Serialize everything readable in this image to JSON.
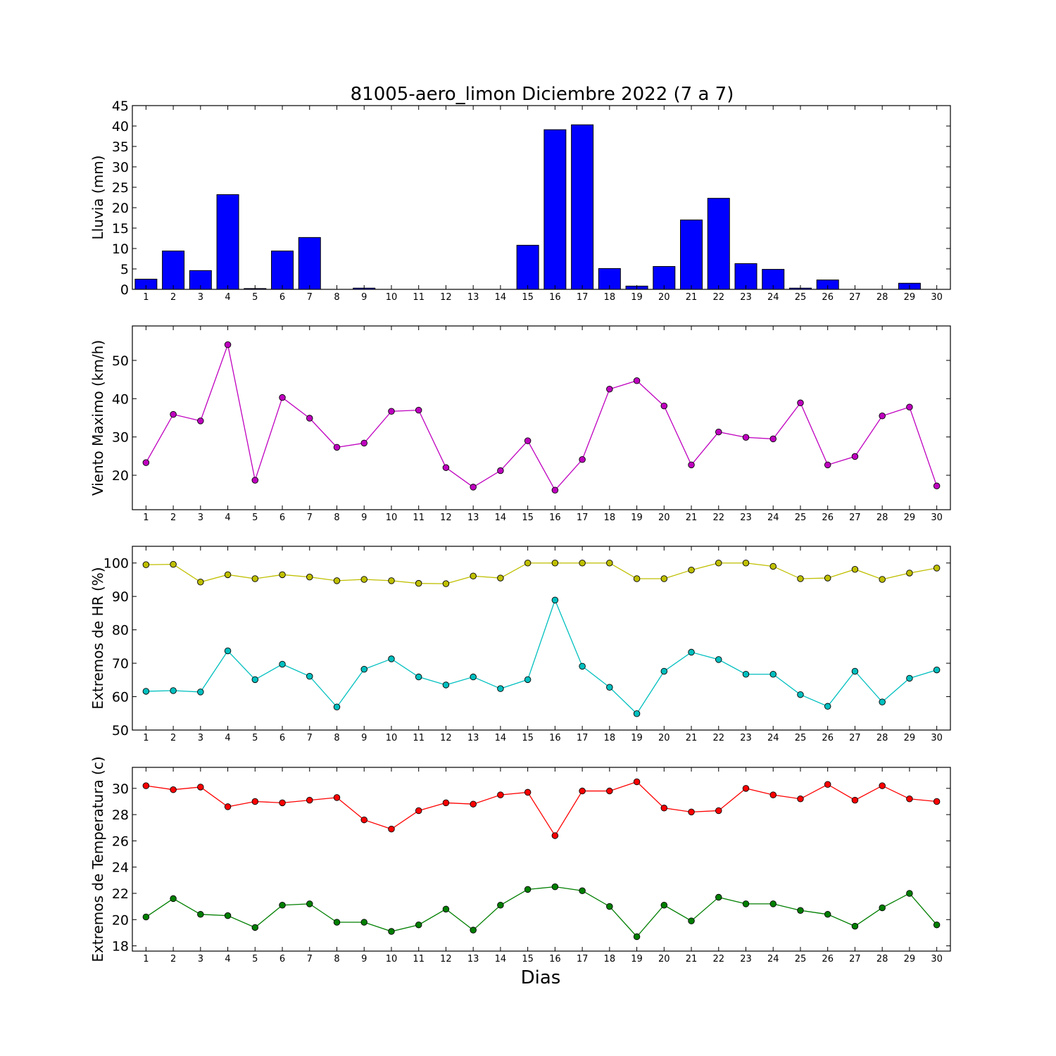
{
  "figure_title": "81005-aero_limon Diciembre 2022  (7 a 7)",
  "x_axis_label": "Dias",
  "chart_data": [
    {
      "type": "bar",
      "ylabel": "Lluvia (mm)",
      "ylim": [
        0,
        45
      ],
      "yticks": [
        0,
        5,
        10,
        15,
        20,
        25,
        30,
        35,
        40,
        45
      ],
      "categories": [
        "1",
        "2",
        "3",
        "4",
        "5",
        "6",
        "7",
        "8",
        "9",
        "10",
        "11",
        "12",
        "13",
        "14",
        "15",
        "16",
        "17",
        "18",
        "19",
        "20",
        "21",
        "22",
        "23",
        "24",
        "25",
        "26",
        "27",
        "28",
        "29",
        "30"
      ],
      "series": [
        {
          "color": "#0000ff",
          "values": [
            2.5,
            9.4,
            4.6,
            23.2,
            0.2,
            9.4,
            12.7,
            0,
            0.3,
            0,
            0,
            0,
            0,
            0,
            10.8,
            39.1,
            40.3,
            5.1,
            0.8,
            5.6,
            17.0,
            22.3,
            6.3,
            4.9,
            0.3,
            2.3,
            0,
            0,
            1.5,
            0
          ]
        }
      ],
      "xlim": [
        0.5,
        30.5
      ]
    },
    {
      "type": "line",
      "ylabel": "Viento Maximo (km/h)",
      "ylim": [
        11,
        59
      ],
      "yticks": [
        20,
        30,
        40,
        50
      ],
      "x": [
        1,
        2,
        3,
        4,
        5,
        6,
        7,
        8,
        9,
        10,
        11,
        12,
        13,
        14,
        15,
        16,
        17,
        18,
        19,
        20,
        21,
        22,
        23,
        24,
        25,
        26,
        27,
        28,
        29,
        30
      ],
      "series": [
        {
          "color": "#bf00bf",
          "values": [
            23.3,
            35.9,
            34.2,
            54.1,
            18.7,
            40.3,
            34.9,
            27.3,
            28.4,
            36.7,
            37.0,
            22.0,
            16.9,
            21.2,
            29.0,
            16.1,
            24.1,
            42.5,
            44.7,
            38.1,
            22.7,
            31.3,
            29.9,
            29.5,
            38.9,
            22.7,
            24.9,
            35.5,
            37.8,
            17.2
          ]
        }
      ],
      "xlim": [
        0.5,
        30.5
      ]
    },
    {
      "type": "line",
      "ylabel": "Extremos de HR (%)",
      "ylim": [
        50,
        105
      ],
      "yticks": [
        50,
        60,
        70,
        80,
        90,
        100
      ],
      "x": [
        1,
        2,
        3,
        4,
        5,
        6,
        7,
        8,
        9,
        10,
        11,
        12,
        13,
        14,
        15,
        16,
        17,
        18,
        19,
        20,
        21,
        22,
        23,
        24,
        25,
        26,
        27,
        28,
        29,
        30
      ],
      "series": [
        {
          "color": "#bfbf00",
          "values": [
            99.5,
            99.6,
            94.3,
            96.5,
            95.3,
            96.5,
            95.8,
            94.7,
            95.1,
            94.7,
            93.9,
            93.8,
            96.1,
            95.5,
            100,
            100,
            100,
            100,
            95.3,
            95.3,
            97.9,
            100,
            100,
            99.0,
            95.3,
            95.5,
            98.1,
            95.1,
            97.0,
            98.5
          ]
        },
        {
          "color": "#00bfbf",
          "values": [
            61.6,
            61.8,
            61.4,
            73.7,
            65.1,
            69.7,
            66.1,
            56.9,
            68.2,
            71.3,
            65.9,
            63.5,
            65.9,
            62.4,
            65.1,
            88.9,
            69.1,
            62.8,
            54.9,
            67.6,
            73.3,
            71.1,
            66.7,
            66.7,
            60.6,
            57.1,
            67.6,
            58.4,
            65.5,
            68.0
          ]
        }
      ],
      "xlim": [
        0.5,
        30.5
      ]
    },
    {
      "type": "line",
      "ylabel": "Extremos de Temperatura (c)",
      "ylim": [
        17.6,
        31.6
      ],
      "yticks": [
        18,
        20,
        22,
        24,
        26,
        28,
        30
      ],
      "x": [
        1,
        2,
        3,
        4,
        5,
        6,
        7,
        8,
        9,
        10,
        11,
        12,
        13,
        14,
        15,
        16,
        17,
        18,
        19,
        20,
        21,
        22,
        23,
        24,
        25,
        26,
        27,
        28,
        29,
        30
      ],
      "series": [
        {
          "color": "#ff0000",
          "values": [
            30.2,
            29.9,
            30.1,
            28.6,
            29.0,
            28.9,
            29.1,
            29.3,
            27.6,
            26.9,
            28.3,
            28.9,
            28.8,
            29.5,
            29.7,
            26.4,
            29.8,
            29.8,
            30.5,
            28.5,
            28.2,
            28.3,
            30.0,
            29.5,
            29.2,
            30.3,
            29.1,
            30.2,
            29.2,
            29.0
          ]
        },
        {
          "color": "#007f00",
          "values": [
            20.2,
            21.6,
            20.4,
            20.3,
            19.4,
            21.1,
            21.2,
            19.8,
            19.8,
            19.1,
            19.6,
            20.8,
            19.2,
            21.1,
            22.3,
            22.5,
            22.2,
            21.0,
            18.7,
            21.1,
            19.9,
            21.7,
            21.2,
            21.2,
            20.7,
            20.4,
            19.5,
            20.9,
            22.0,
            19.6
          ]
        }
      ],
      "xlim": [
        0.5,
        30.5
      ]
    }
  ]
}
